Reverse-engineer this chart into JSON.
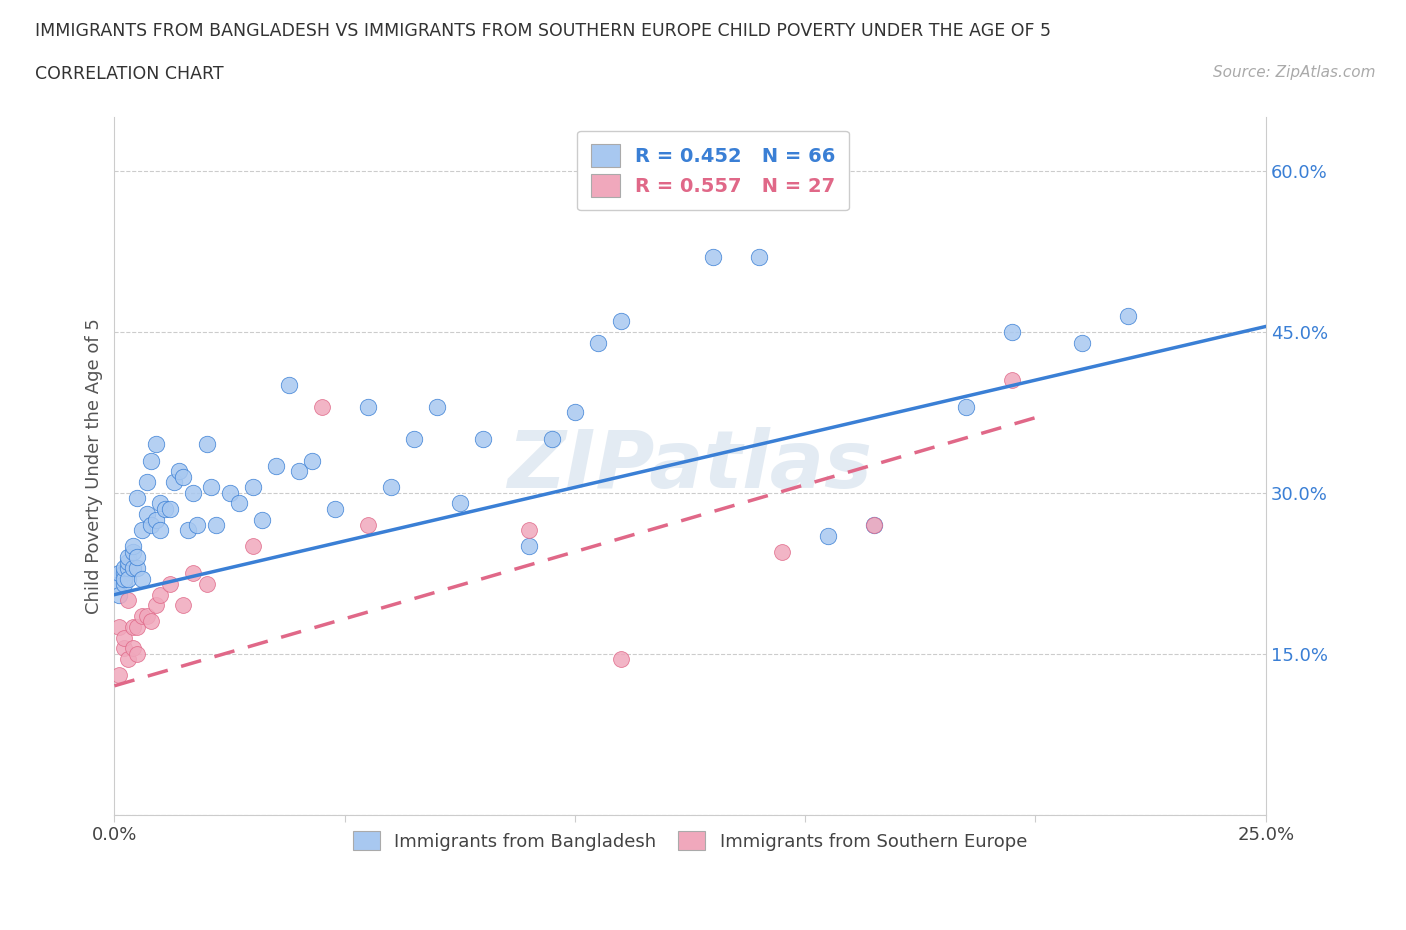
{
  "title_line1": "IMMIGRANTS FROM BANGLADESH VS IMMIGRANTS FROM SOUTHERN EUROPE CHILD POVERTY UNDER THE AGE OF 5",
  "title_line2": "CORRELATION CHART",
  "source": "Source: ZipAtlas.com",
  "ylabel_label": "Child Poverty Under the Age of 5",
  "xmin": 0.0,
  "xmax": 0.25,
  "ymin": 0.0,
  "ymax": 0.65,
  "color_bangladesh": "#a8c8f0",
  "color_southern_europe": "#f0a8bc",
  "line_color_bangladesh": "#3a7fd5",
  "line_color_southern_europe": "#e06888",
  "legend1_label": "R = 0.452   N = 66",
  "legend2_label": "R = 0.557   N = 27",
  "legend_bottom_label1": "Immigrants from Bangladesh",
  "legend_bottom_label2": "Immigrants from Southern Europe",
  "watermark": "ZIPatlas",
  "bangladesh_x": [
    0.001,
    0.001,
    0.001,
    0.002,
    0.002,
    0.002,
    0.002,
    0.003,
    0.003,
    0.003,
    0.003,
    0.004,
    0.004,
    0.004,
    0.005,
    0.005,
    0.005,
    0.006,
    0.006,
    0.007,
    0.007,
    0.008,
    0.008,
    0.009,
    0.009,
    0.01,
    0.01,
    0.011,
    0.012,
    0.013,
    0.014,
    0.015,
    0.016,
    0.017,
    0.018,
    0.02,
    0.021,
    0.022,
    0.025,
    0.027,
    0.03,
    0.032,
    0.035,
    0.038,
    0.04,
    0.043,
    0.048,
    0.055,
    0.06,
    0.065,
    0.07,
    0.075,
    0.08,
    0.09,
    0.095,
    0.1,
    0.105,
    0.11,
    0.13,
    0.14,
    0.155,
    0.165,
    0.185,
    0.195,
    0.21,
    0.22
  ],
  "bangladesh_y": [
    0.215,
    0.225,
    0.205,
    0.225,
    0.215,
    0.22,
    0.23,
    0.23,
    0.235,
    0.24,
    0.22,
    0.23,
    0.245,
    0.25,
    0.23,
    0.24,
    0.295,
    0.22,
    0.265,
    0.28,
    0.31,
    0.27,
    0.33,
    0.275,
    0.345,
    0.265,
    0.29,
    0.285,
    0.285,
    0.31,
    0.32,
    0.315,
    0.265,
    0.3,
    0.27,
    0.345,
    0.305,
    0.27,
    0.3,
    0.29,
    0.305,
    0.275,
    0.325,
    0.4,
    0.32,
    0.33,
    0.285,
    0.38,
    0.305,
    0.35,
    0.38,
    0.29,
    0.35,
    0.25,
    0.35,
    0.375,
    0.44,
    0.46,
    0.52,
    0.52,
    0.26,
    0.27,
    0.38,
    0.45,
    0.44,
    0.465
  ],
  "southern_europe_x": [
    0.001,
    0.001,
    0.002,
    0.002,
    0.003,
    0.003,
    0.004,
    0.004,
    0.005,
    0.005,
    0.006,
    0.007,
    0.008,
    0.009,
    0.01,
    0.012,
    0.015,
    0.017,
    0.02,
    0.03,
    0.045,
    0.055,
    0.09,
    0.11,
    0.145,
    0.165,
    0.195
  ],
  "southern_europe_y": [
    0.13,
    0.175,
    0.155,
    0.165,
    0.145,
    0.2,
    0.155,
    0.175,
    0.175,
    0.15,
    0.185,
    0.185,
    0.18,
    0.195,
    0.205,
    0.215,
    0.195,
    0.225,
    0.215,
    0.25,
    0.38,
    0.27,
    0.265,
    0.145,
    0.245,
    0.27,
    0.405
  ],
  "bang_line_x0": 0.0,
  "bang_line_y0": 0.205,
  "bang_line_x1": 0.25,
  "bang_line_y1": 0.455,
  "seur_line_x0": 0.0,
  "seur_line_y0": 0.12,
  "seur_line_x1": 0.2,
  "seur_line_y1": 0.37
}
